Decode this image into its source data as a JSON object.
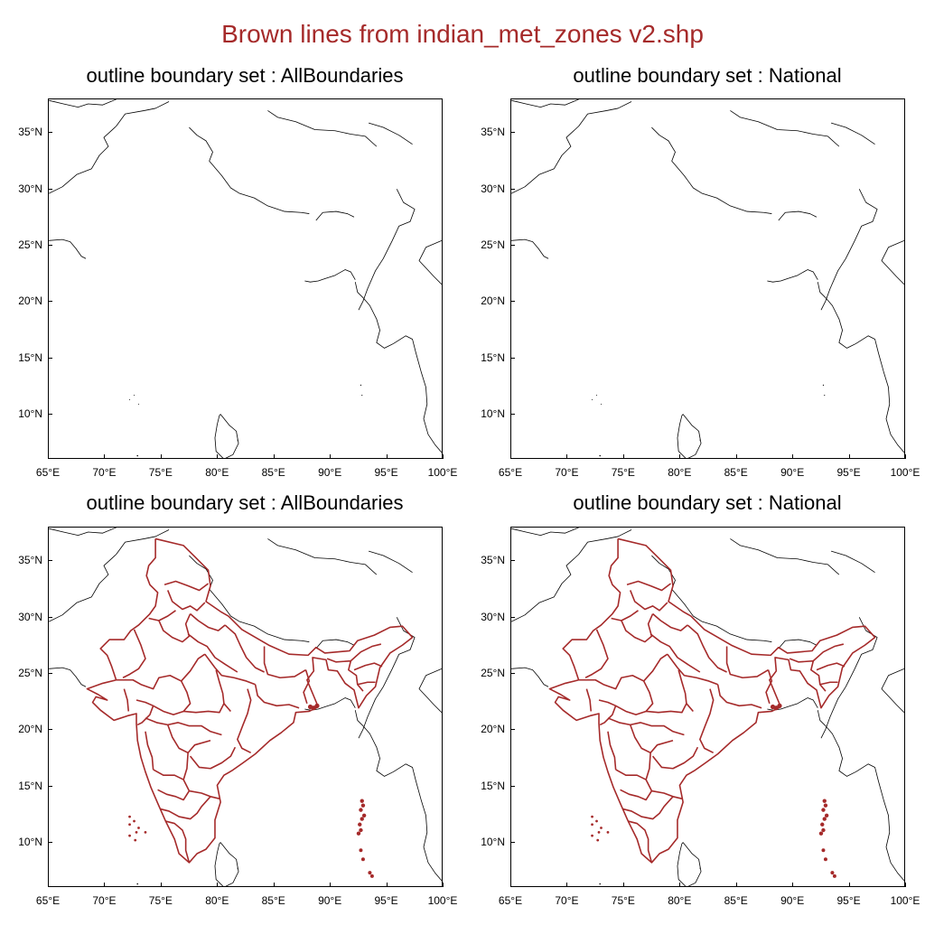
{
  "title": "Brown lines from indian_met_zones v2.shp",
  "colors": {
    "title": "#a52a2a",
    "zones": "#a52a2a",
    "outline": "#000000"
  },
  "latitude_ticks": [
    "35°N",
    "30°N",
    "25°N",
    "20°N",
    "15°N",
    "10°N"
  ],
  "longitude_ticks": [
    "65°E",
    "70°E",
    "75°E",
    "80°E",
    "85°E",
    "90°E",
    "95°E",
    "100°E"
  ],
  "panels": [
    {
      "title": "outline boundary set : AllBoundaries",
      "show_zones": false
    },
    {
      "title": "outline boundary set : National",
      "show_zones": false
    },
    {
      "title": "outline boundary set : AllBoundaries",
      "show_zones": true
    },
    {
      "title": "outline boundary set : National",
      "show_zones": true
    }
  ]
}
